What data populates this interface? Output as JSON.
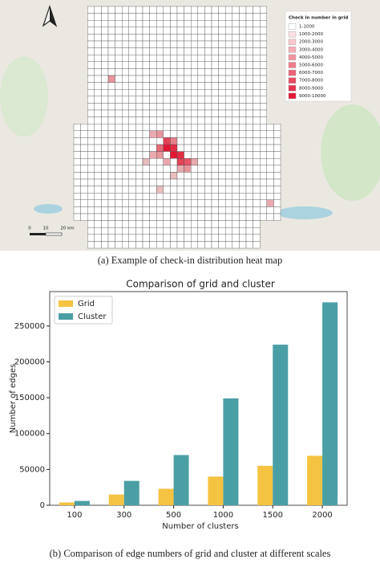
{
  "figure_a": {
    "legend_title": "Check in number in grid",
    "legend_entries": [
      "1-1000",
      "1000-2000",
      "2000-3000",
      "3000-4000",
      "4000-5000",
      "5000-6000",
      "6000-7000",
      "7000-8000",
      "8000-9000",
      "9000-10000"
    ],
    "legend_colors": [
      "#ffffff",
      "#fbe1e4",
      "#f8c8ce",
      "#f5aeb8",
      "#f295a2",
      "#ef7c8c",
      "#ec6376",
      "#e94a60",
      "#e6314a",
      "#e31834"
    ],
    "scale_labels": [
      "0",
      "10",
      "20 km"
    ],
    "caption": "(a) Example of check-in distribution heat map"
  },
  "chart_data": {
    "type": "bar",
    "title": "Comparison of grid and cluster",
    "x_label": "Number of clusters",
    "y_label": "Number of edges",
    "categories": [
      "100",
      "300",
      "500",
      "1000",
      "1500",
      "2000"
    ],
    "series": [
      {
        "name": "Grid",
        "color": "#f5c342",
        "values": [
          4000,
          15000,
          23000,
          40000,
          55000,
          69000
        ]
      },
      {
        "name": "Cluster",
        "color": "#4a9fa5",
        "values": [
          6000,
          34000,
          70000,
          149000,
          224000,
          283000
        ]
      }
    ],
    "ylim": [
      0,
      298000
    ],
    "yticks": [
      0,
      50000,
      100000,
      150000,
      200000,
      250000
    ],
    "legend": "upper left"
  },
  "caption_b": "(b) Comparison of edge numbers of grid and cluster at different scales"
}
